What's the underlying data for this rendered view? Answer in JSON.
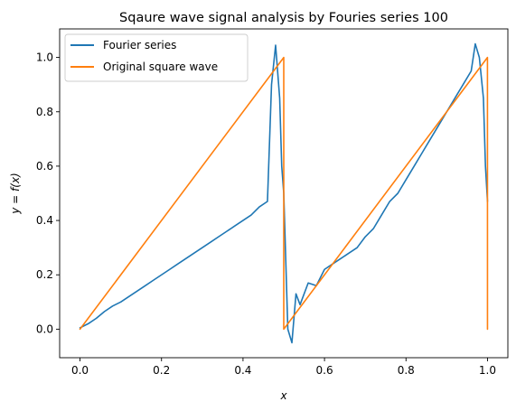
{
  "chart_data": {
    "type": "line",
    "title": "Sqaure wave signal analysis by Fouries series 100",
    "xlabel": "x",
    "ylabel": "y = f(x)",
    "xlim": [
      -0.05,
      1.05
    ],
    "ylim": [
      -0.105,
      1.105
    ],
    "xticks": [
      0.0,
      0.2,
      0.4,
      0.6,
      0.8,
      1.0
    ],
    "xtick_labels": [
      "0.0",
      "0.2",
      "0.4",
      "0.6",
      "0.8",
      "1.0"
    ],
    "yticks": [
      0.0,
      0.2,
      0.4,
      0.6,
      0.8,
      1.0
    ],
    "ytick_labels": [
      "0.0",
      "0.2",
      "0.4",
      "0.6",
      "0.8",
      "1.0"
    ],
    "grid": false,
    "legend_position": "top-left",
    "series": [
      {
        "name": "Fourier series",
        "color": "#1f77b4",
        "x": [
          0.0,
          0.02,
          0.04,
          0.06,
          0.08,
          0.1,
          0.12,
          0.14,
          0.16,
          0.18,
          0.2,
          0.22,
          0.24,
          0.26,
          0.28,
          0.3,
          0.32,
          0.34,
          0.36,
          0.38,
          0.4,
          0.42,
          0.44,
          0.46,
          0.47,
          0.48,
          0.49,
          0.495,
          0.5,
          0.505,
          0.51,
          0.52,
          0.53,
          0.54,
          0.56,
          0.58,
          0.6,
          0.62,
          0.64,
          0.66,
          0.68,
          0.7,
          0.72,
          0.74,
          0.76,
          0.78,
          0.8,
          0.82,
          0.84,
          0.86,
          0.88,
          0.9,
          0.92,
          0.94,
          0.96,
          0.97,
          0.98,
          0.99,
          0.995,
          1.0
        ],
        "y": [
          0.005,
          0.02,
          0.04,
          0.065,
          0.085,
          0.1,
          0.12,
          0.14,
          0.16,
          0.18,
          0.2,
          0.22,
          0.24,
          0.26,
          0.28,
          0.3,
          0.32,
          0.34,
          0.36,
          0.38,
          0.4,
          0.42,
          0.45,
          0.47,
          0.9,
          1.045,
          0.85,
          0.6,
          0.5,
          0.25,
          0.0,
          -0.05,
          0.13,
          0.09,
          0.17,
          0.16,
          0.22,
          0.24,
          0.26,
          0.28,
          0.3,
          0.34,
          0.37,
          0.42,
          0.47,
          0.5,
          0.55,
          0.6,
          0.65,
          0.7,
          0.75,
          0.8,
          0.85,
          0.9,
          0.95,
          1.05,
          1.0,
          0.85,
          0.6,
          0.47
        ]
      },
      {
        "name": "Original square wave",
        "color": "#ff7f0e",
        "x": [
          0.0,
          0.5,
          0.5,
          0.9999,
          1.0
        ],
        "y": [
          0.0,
          1.0,
          0.0,
          1.0,
          0.0
        ]
      }
    ]
  }
}
